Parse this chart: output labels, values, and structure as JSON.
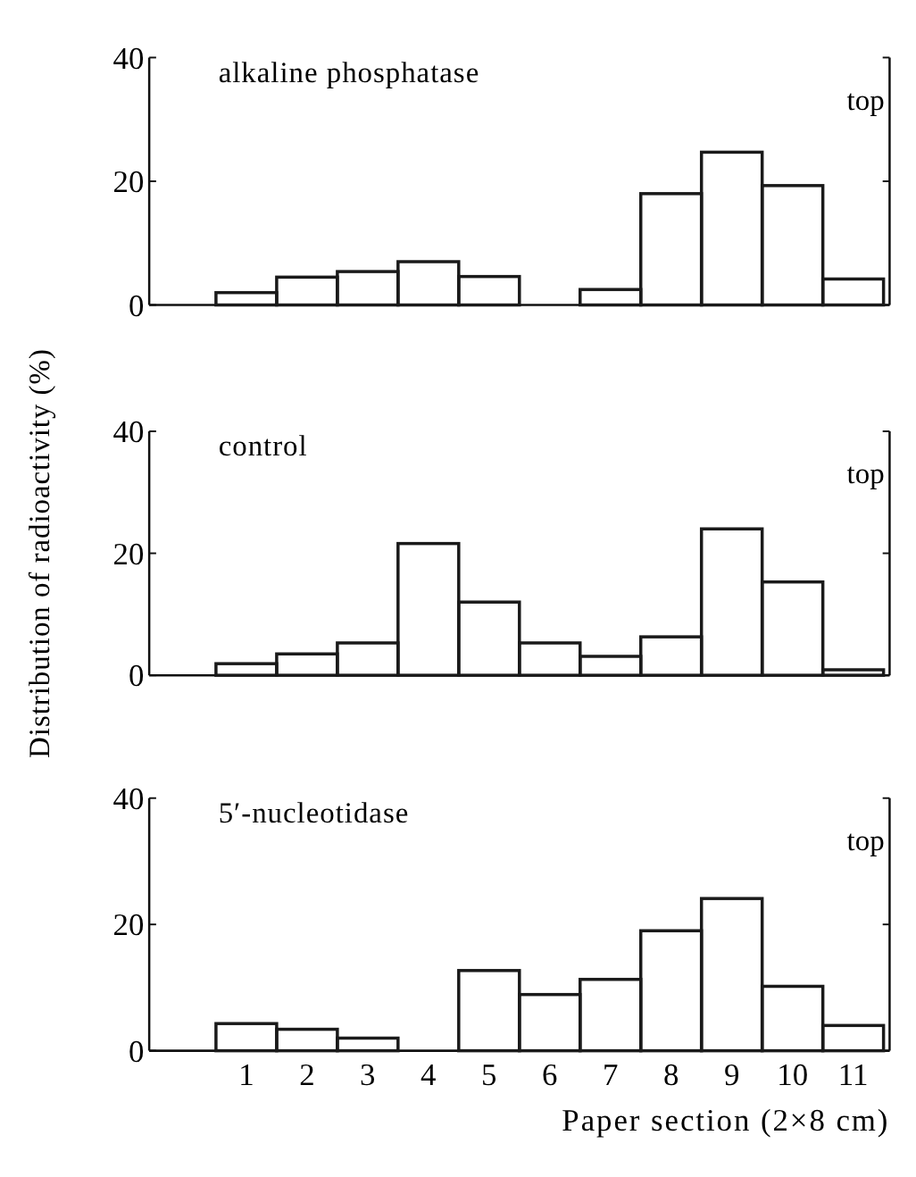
{
  "chart_data": [
    {
      "type": "bar",
      "title": "alkaline phosphatase",
      "color": "#1a1a1a",
      "categories": [
        null,
        null,
        null,
        null,
        null,
        null,
        null,
        null,
        null,
        null,
        null,
        null
      ],
      "values": [
        null,
        2,
        4.5,
        5.4,
        7,
        4.6,
        0,
        2.5,
        18,
        24.7,
        19.3,
        4.2
      ],
      "ylim": [
        0,
        40
      ],
      "yticks": [
        0,
        20,
        40
      ],
      "tick_labels": "y",
      "annotations": [
        "top"
      ]
    },
    {
      "type": "bar",
      "title": "control",
      "ylabel": "Distribution of radioactivity (%)",
      "color": "#1a1a1a",
      "categories": [
        null,
        null,
        null,
        null,
        null,
        null,
        null,
        null,
        null,
        null,
        null,
        null
      ],
      "values": [
        null,
        1.9,
        3.5,
        5.3,
        21.6,
        12,
        5.3,
        3.1,
        6.3,
        24,
        15.3,
        0.9
      ],
      "ylim": [
        0,
        40
      ],
      "yticks": [
        0,
        20,
        40
      ],
      "tick_labels": "y",
      "annotations": [
        "top"
      ]
    },
    {
      "type": "bar",
      "title": "5′-nucleotidase",
      "xlabel": "Paper section (2×8 cm)",
      "color": "#1a1a1a",
      "categories": [
        null,
        "1",
        "2",
        "3",
        "4",
        "5",
        "6",
        "7",
        "8",
        "9",
        "10",
        "11"
      ],
      "values": [
        null,
        4.3,
        3.4,
        2,
        0,
        12.7,
        8.9,
        11.3,
        19,
        24.1,
        10.2,
        4
      ],
      "ylim": [
        0,
        40
      ],
      "yticks": [
        0,
        20,
        40
      ],
      "annotations": [
        "top"
      ]
    }
  ]
}
